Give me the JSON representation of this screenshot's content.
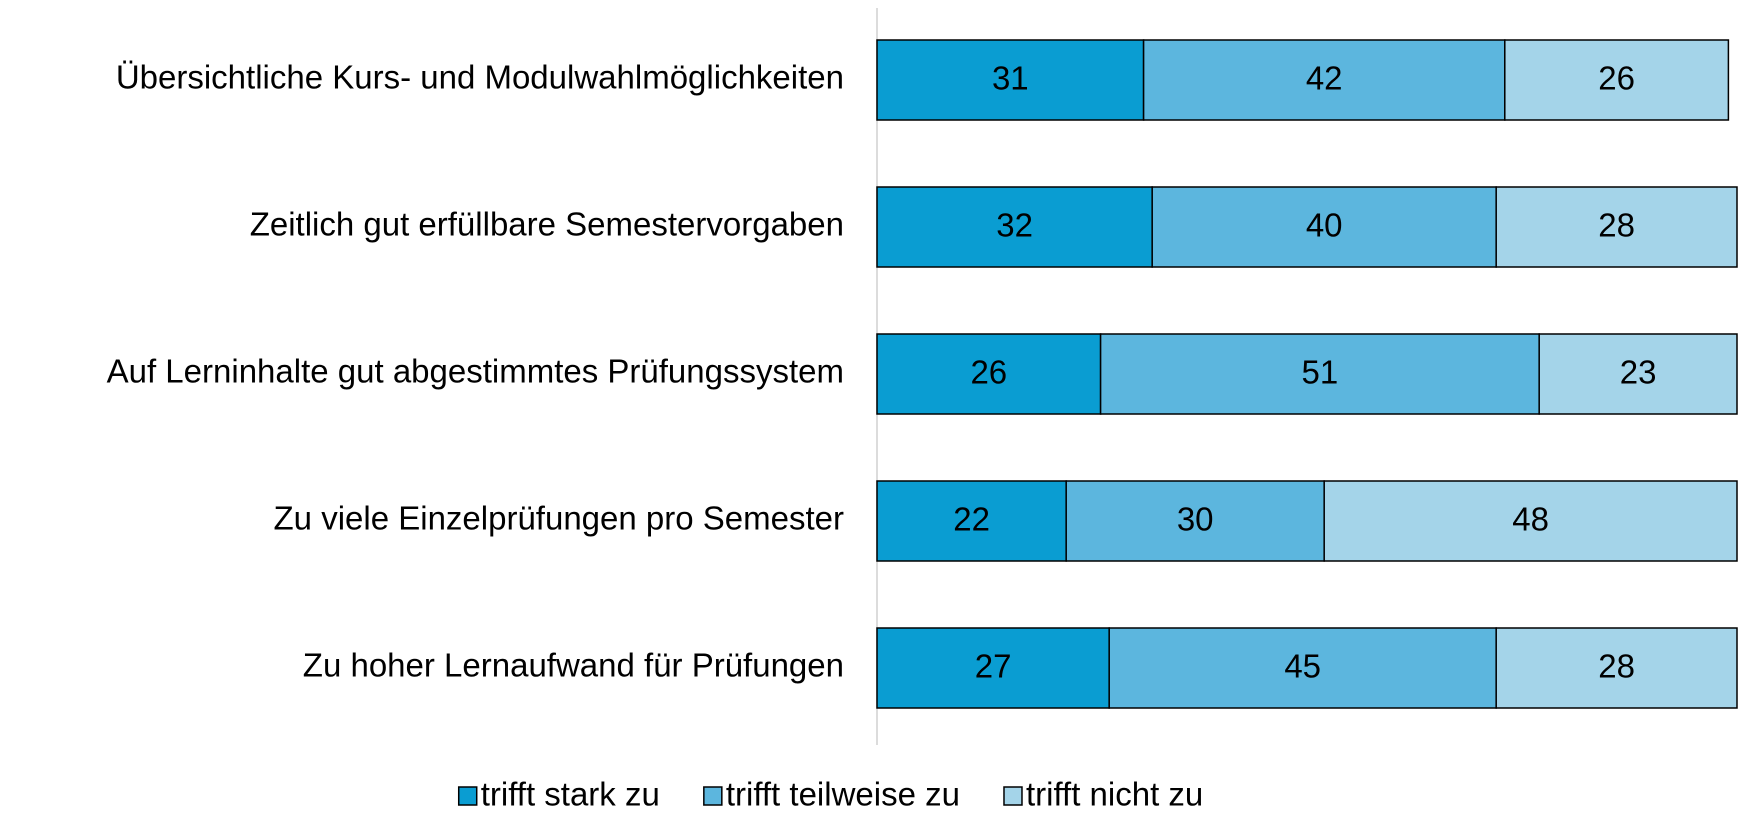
{
  "chart_data": {
    "type": "stacked_barh",
    "categories": [
      "Übersichtliche Kurs- und Modulwahlmöglichkeiten",
      "Zeitlich gut erfüllbare Semestervorgaben",
      "Auf Lerninhalte gut abgestimmtes Prüfungssystem",
      "Zu viele Einzelprüfungen pro Semester",
      "Zu hoher Lernaufwand für Prüfungen"
    ],
    "series": [
      {
        "name": "trifft stark zu",
        "color": "#0a9dd2",
        "values": [
          31,
          32,
          26,
          22,
          27
        ]
      },
      {
        "name": "trifft teilweise zu",
        "color": "#5cb6de",
        "values": [
          42,
          40,
          51,
          30,
          45
        ]
      },
      {
        "name": "trifft nicht zu",
        "color": "#a4d4e9",
        "values": [
          26,
          28,
          23,
          48,
          28
        ]
      }
    ],
    "xlim": [
      0,
      100
    ],
    "legend": "bottom"
  }
}
